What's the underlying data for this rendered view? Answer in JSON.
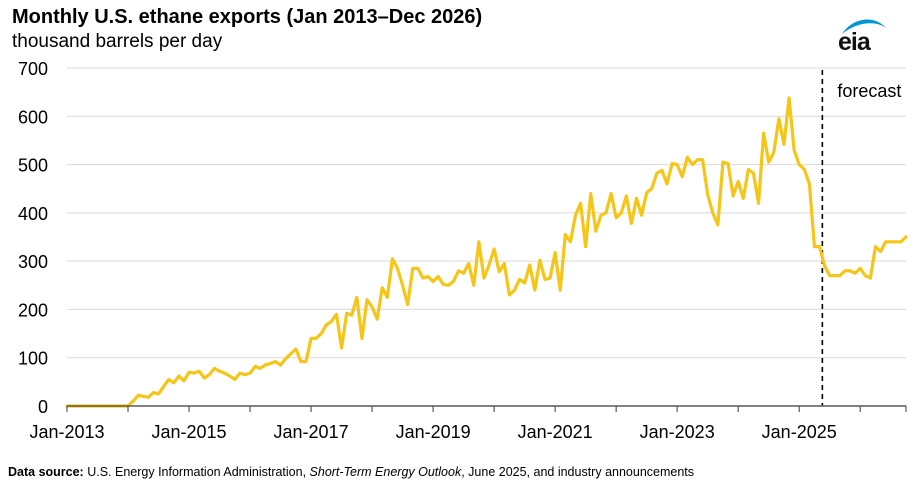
{
  "chart_data": {
    "type": "line",
    "title": "Monthly U.S. ethane exports (Jan 2013–Dec 2026)",
    "subtitle": "thousand barrels per day",
    "xlabel": "",
    "ylabel": "thousand barrels per day",
    "ylim": [
      0,
      700
    ],
    "yticks": [
      0,
      100,
      200,
      300,
      400,
      500,
      600,
      700
    ],
    "ytick_labels": [
      "0",
      "100",
      "200",
      "300",
      "400",
      "500",
      "600",
      "700"
    ],
    "x_start": "Jan 2013",
    "x_end": "Dec 2026",
    "x_tick_labels": [
      "Jan-2013",
      "Jan-2015",
      "Jan-2017",
      "Jan-2019",
      "Jan-2021",
      "Jan-2023",
      "Jan-2025"
    ],
    "grid": "horizontal",
    "series": [
      {
        "name": "Monthly U.S. ethane exports",
        "color": "#F5C518",
        "values": [
          0,
          0,
          0,
          0,
          0,
          0,
          0,
          0,
          0,
          0,
          0,
          0,
          0,
          10,
          22,
          20,
          18,
          28,
          25,
          40,
          55,
          48,
          62,
          52,
          70,
          68,
          72,
          58,
          65,
          78,
          72,
          68,
          62,
          55,
          68,
          65,
          68,
          82,
          78,
          85,
          88,
          92,
          85,
          98,
          108,
          118,
          92,
          92,
          140,
          140,
          150,
          168,
          175,
          190,
          120,
          192,
          188,
          225,
          140,
          220,
          205,
          180,
          245,
          225,
          305,
          285,
          250,
          210,
          285,
          285,
          265,
          268,
          258,
          268,
          252,
          250,
          258,
          280,
          275,
          295,
          250,
          340,
          265,
          292,
          325,
          278,
          295,
          230,
          240,
          262,
          255,
          292,
          240,
          302,
          262,
          265,
          318,
          240,
          355,
          340,
          395,
          420,
          330,
          440,
          362,
          395,
          400,
          440,
          390,
          400,
          435,
          378,
          430,
          395,
          442,
          450,
          482,
          488,
          460,
          502,
          500,
          475,
          515,
          500,
          510,
          510,
          438,
          400,
          375,
          505,
          502,
          435,
          465,
          430,
          490,
          482,
          420,
          565,
          505,
          525,
          595,
          542,
          638,
          530,
          500,
          490,
          460,
          330,
          330,
          290,
          270,
          270,
          270,
          280,
          280,
          275,
          285,
          270,
          265,
          330,
          320,
          340,
          340,
          340,
          340,
          350
        ]
      }
    ],
    "forecast_start": "Jun 2025",
    "annotations": [
      {
        "text": "forecast"
      }
    ]
  },
  "logo": {
    "text": "eia"
  },
  "footer": {
    "label": "Data source:",
    "text1": " U.S. Energy Information Administration, ",
    "link": "Short-Term Energy Outlook",
    "text2": ", June 2025, and industry announcements"
  },
  "colors": {
    "line": "#F5C518",
    "grid": "#D9D9D9",
    "axis": "#595959",
    "forecast_line": "#000000",
    "logo_swoosh": "#0096D6"
  }
}
